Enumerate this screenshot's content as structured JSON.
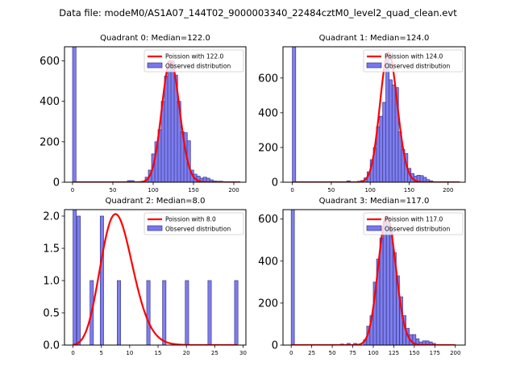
{
  "suptitle": "Data file: modeM0/AS1A07_144T02_9000003340_22484cztM0_level2_quad_clean.evt",
  "colors": {
    "bar_fill": "#7777ee",
    "bar_edge": "#3a3a8a",
    "poisson": "#ff0000"
  },
  "chart_data": [
    {
      "type": "bar",
      "title": "Quadrant 0: Median=122.0",
      "legend": [
        "Poission with 122.0",
        "Observed distribution"
      ],
      "legend_position": "top-right",
      "xlim": [
        -10,
        215
      ],
      "ylim": [
        0,
        670
      ],
      "xticks": [
        0,
        50,
        100,
        150,
        200
      ],
      "yticks": [
        0,
        200,
        400,
        600
      ],
      "bin_width": 4.3,
      "bins": [
        [
          0,
          680
        ],
        [
          68,
          8
        ],
        [
          72,
          8
        ],
        [
          86,
          5
        ],
        [
          90,
          25
        ],
        [
          94,
          60
        ],
        [
          98,
          140
        ],
        [
          102,
          200
        ],
        [
          106,
          260
        ],
        [
          110,
          400
        ],
        [
          114,
          525
        ],
        [
          118,
          600
        ],
        [
          122,
          600
        ],
        [
          126,
          530
        ],
        [
          130,
          400
        ],
        [
          134,
          250
        ],
        [
          138,
          245
        ],
        [
          142,
          205
        ],
        [
          146,
          60
        ],
        [
          150,
          40
        ],
        [
          154,
          30
        ],
        [
          158,
          20
        ],
        [
          162,
          25
        ],
        [
          166,
          20
        ],
        [
          170,
          12
        ],
        [
          174,
          6
        ],
        [
          178,
          5
        ],
        [
          182,
          5
        ]
      ],
      "poisson_mean": 122.0,
      "poisson_peak": 600,
      "poisson_range": [
        0,
        208
      ]
    },
    {
      "type": "bar",
      "title": "Quadrant 1: Median=124.0",
      "legend": [
        "Poission with 124.0",
        "Observed distribution"
      ],
      "legend_position": "top-right",
      "xlim": [
        -12,
        222
      ],
      "ylim": [
        0,
        780
      ],
      "xticks": [
        0,
        50,
        100,
        150,
        200
      ],
      "yticks": [
        0,
        200,
        400,
        600
      ],
      "bin_width": 4.35,
      "bins": [
        [
          0,
          790
        ],
        [
          70,
          8
        ],
        [
          84,
          6
        ],
        [
          88,
          10
        ],
        [
          92,
          25
        ],
        [
          96,
          60
        ],
        [
          100,
          130
        ],
        [
          104,
          200
        ],
        [
          108,
          320
        ],
        [
          112,
          380
        ],
        [
          116,
          460
        ],
        [
          120,
          740
        ],
        [
          124,
          590
        ],
        [
          128,
          560
        ],
        [
          132,
          545
        ],
        [
          136,
          290
        ],
        [
          140,
          190
        ],
        [
          144,
          165
        ],
        [
          148,
          80
        ],
        [
          152,
          50
        ],
        [
          156,
          35
        ],
        [
          160,
          40
        ],
        [
          164,
          38
        ],
        [
          168,
          28
        ],
        [
          172,
          15
        ],
        [
          176,
          8
        ]
      ],
      "poisson_mean": 124.0,
      "poisson_peak": 745,
      "poisson_range": [
        0,
        215
      ]
    },
    {
      "type": "bar",
      "title": "Quadrant 2: Median=8.0",
      "legend": [
        "Poission with 8.0",
        "Observed distribution"
      ],
      "legend_position": "top-right",
      "xlim": [
        -1.5,
        30.5
      ],
      "ylim": [
        0,
        2.1
      ],
      "xticks": [
        0,
        5,
        10,
        15,
        20,
        25,
        30
      ],
      "yticks": [
        0.0,
        0.5,
        1.0,
        1.5,
        2.0
      ],
      "bin_width": 0.6,
      "bins": [
        [
          0,
          2.2
        ],
        [
          0.7,
          2
        ],
        [
          3,
          1
        ],
        [
          4.8,
          2
        ],
        [
          7.8,
          1
        ],
        [
          13,
          1
        ],
        [
          15.8,
          1
        ],
        [
          19.8,
          1
        ],
        [
          23.8,
          1
        ],
        [
          28.5,
          1
        ]
      ],
      "poisson_mean": 8.0,
      "poisson_peak": 2.0,
      "poisson_range": [
        0,
        29
      ]
    },
    {
      "type": "bar",
      "title": "Quadrant 3: Median=117.0",
      "legend": [
        "Poission with 117.0",
        "Observed distribution"
      ],
      "legend_position": "top-right",
      "xlim": [
        -10,
        212
      ],
      "ylim": [
        0,
        645
      ],
      "xticks": [
        0,
        25,
        50,
        75,
        100,
        125,
        150,
        175,
        200
      ],
      "yticks": [
        0,
        200,
        400,
        600
      ],
      "bin_width": 3.9,
      "bins": [
        [
          0,
          660
        ],
        [
          60,
          5
        ],
        [
          68,
          8
        ],
        [
          76,
          8
        ],
        [
          88,
          25
        ],
        [
          92,
          90
        ],
        [
          96,
          140
        ],
        [
          100,
          300
        ],
        [
          104,
          410
        ],
        [
          108,
          510
        ],
        [
          112,
          590
        ],
        [
          116,
          610
        ],
        [
          120,
          550
        ],
        [
          124,
          440
        ],
        [
          128,
          330
        ],
        [
          132,
          230
        ],
        [
          136,
          140
        ],
        [
          140,
          80
        ],
        [
          144,
          50
        ],
        [
          148,
          50
        ],
        [
          152,
          30
        ],
        [
          156,
          15
        ],
        [
          160,
          20
        ],
        [
          164,
          20
        ],
        [
          168,
          15
        ],
        [
          172,
          8
        ]
      ],
      "poisson_mean": 117.0,
      "poisson_peak": 612,
      "poisson_range": [
        0,
        200
      ]
    }
  ]
}
